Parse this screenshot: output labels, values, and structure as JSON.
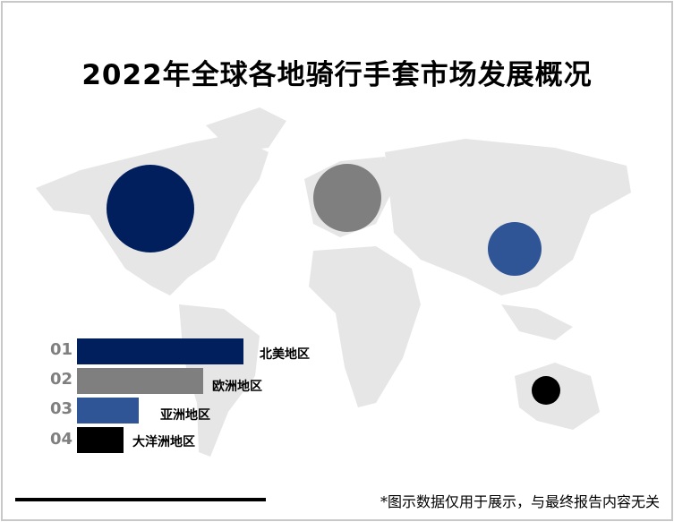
{
  "title": "2022年全球各地骑行手套市场发展概况",
  "note": "*图示数据仅用于展示，与最终报告内容无关",
  "colors": {
    "north_america": "#001f5c",
    "europe": "#7f7f7f",
    "asia": "#2f5597",
    "oceania": "#000000",
    "map": "#e6e6e6"
  },
  "chart_data": {
    "type": "bar",
    "title": "2022年全球各地骑行手套市场发展概况",
    "orientation": "horizontal",
    "categories": [
      "北美地区",
      "欧洲地区",
      "亚洲地区",
      "大洋洲地区"
    ],
    "ranks": [
      "01",
      "02",
      "03",
      "04"
    ],
    "values": [
      1.0,
      0.76,
      0.37,
      0.28
    ],
    "value_note": "relative share (no numeric labels shown)",
    "bubbles": [
      {
        "region": "北美地区",
        "size": 1.0
      },
      {
        "region": "欧洲地区",
        "size": 0.78
      },
      {
        "region": "亚洲地区",
        "size": 0.61
      },
      {
        "region": "大洋洲地区",
        "size": 0.33
      }
    ]
  }
}
